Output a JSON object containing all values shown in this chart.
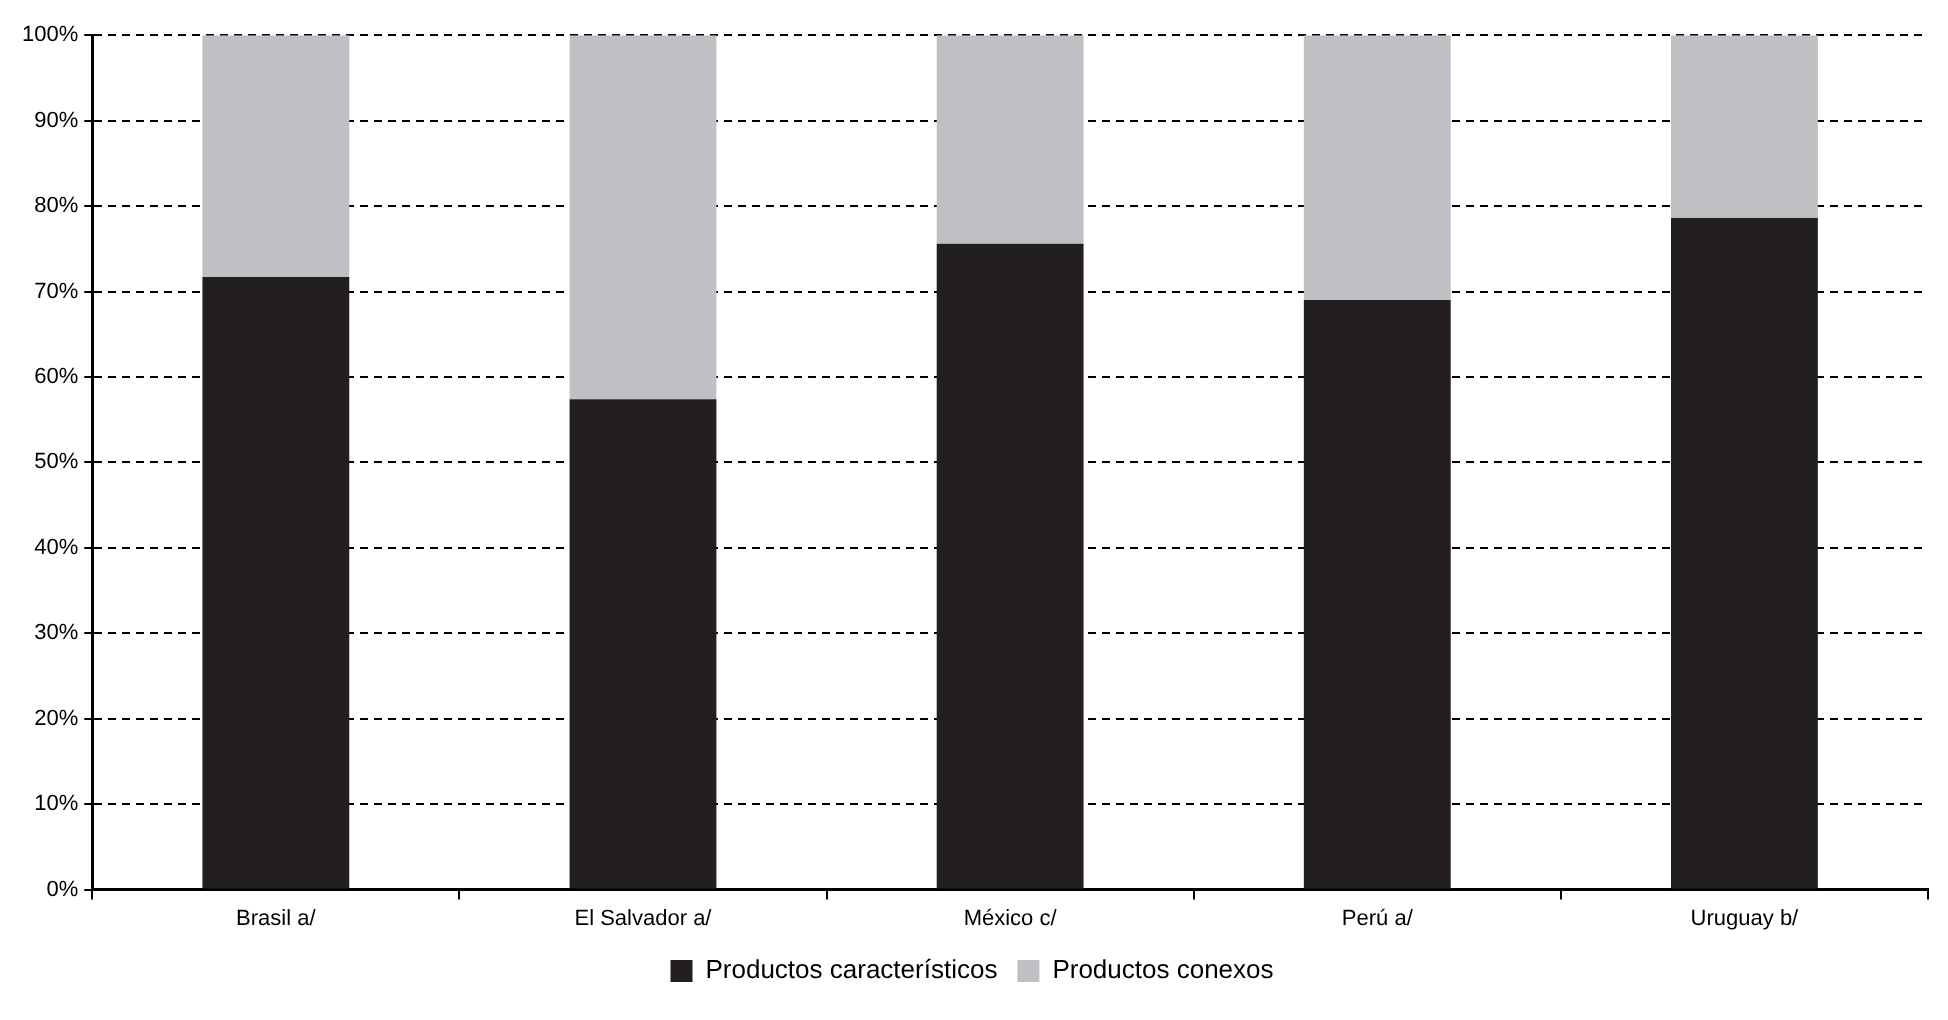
{
  "chart_data": {
    "type": "bar",
    "stacked": true,
    "categories": [
      "Brasil a/",
      "El Salvador a/",
      "México c/",
      "Perú a/",
      "Uruguay b/"
    ],
    "series": [
      {
        "name": "Productos característicos",
        "color": "#231f20",
        "values": [
          71.7,
          57.4,
          75.6,
          69.0,
          78.6
        ]
      },
      {
        "name": "Productos conexos",
        "color": "#bfc0c4",
        "values": [
          28.3,
          42.6,
          24.4,
          31.0,
          21.4
        ]
      }
    ],
    "ylim": [
      0,
      100
    ],
    "yticks": [
      {
        "value": 0,
        "label": "0%"
      },
      {
        "value": 10,
        "label": "10%"
      },
      {
        "value": 20,
        "label": "20%"
      },
      {
        "value": 30,
        "label": "30%"
      },
      {
        "value": 40,
        "label": "40%"
      },
      {
        "value": 50,
        "label": "50%"
      },
      {
        "value": 60,
        "label": "60%"
      },
      {
        "value": 70,
        "label": "70%"
      },
      {
        "value": 80,
        "label": "80%"
      },
      {
        "value": 90,
        "label": "90%"
      },
      {
        "value": 100,
        "label": "100%"
      }
    ],
    "grid": "y",
    "legend": "bottom"
  }
}
